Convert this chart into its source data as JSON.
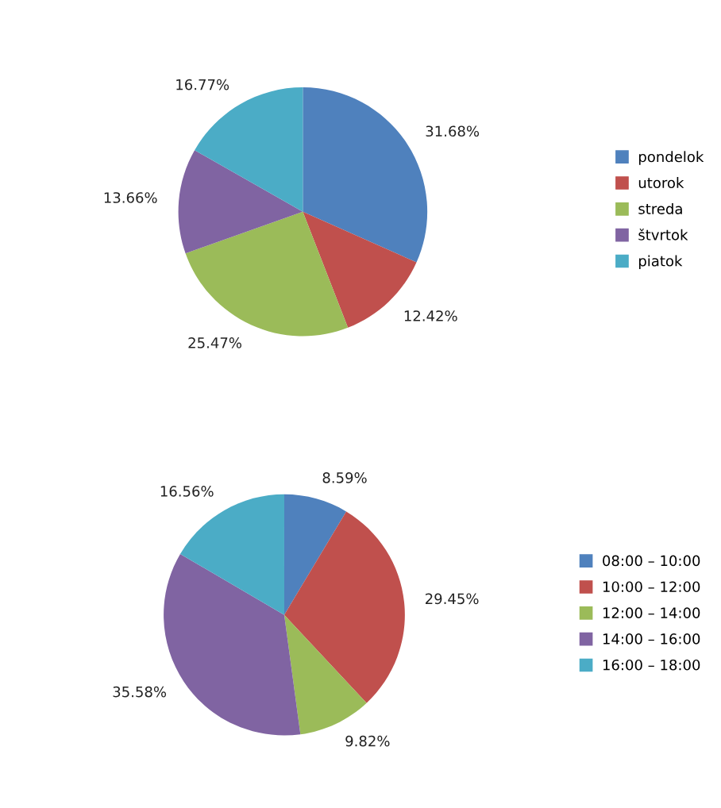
{
  "chart_data": [
    {
      "type": "pie",
      "categories": [
        "pondelok",
        "utorok",
        "streda",
        "štvrtok",
        "piatok"
      ],
      "values": [
        31.68,
        12.42,
        25.47,
        13.66,
        16.77
      ],
      "value_labels": [
        "31.68%",
        "12.42%",
        "25.47%",
        "13.66%",
        "16.77%"
      ],
      "colors": [
        "#4f81bd",
        "#c0504d",
        "#9bbb59",
        "#8064a2",
        "#4bacc6"
      ],
      "legend": "right"
    },
    {
      "type": "pie",
      "categories": [
        "08:00 – 10:00",
        "10:00 – 12:00",
        "12:00 – 14:00",
        "14:00 – 16:00",
        "16:00 – 18:00"
      ],
      "values": [
        8.59,
        29.45,
        9.82,
        35.58,
        16.56
      ],
      "value_labels": [
        "8.59%",
        "29.45%",
        "9.82%",
        "35.58%",
        "16.56%"
      ],
      "colors": [
        "#4f81bd",
        "#c0504d",
        "#9bbb59",
        "#8064a2",
        "#4bacc6"
      ],
      "legend": "right"
    }
  ]
}
